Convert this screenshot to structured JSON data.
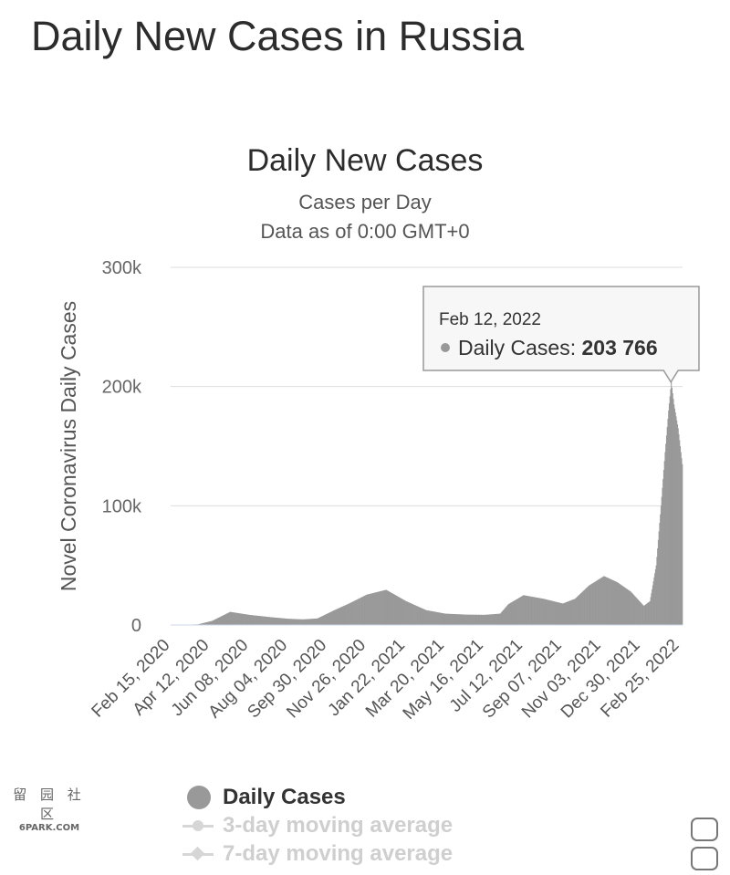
{
  "page": {
    "title": "Daily New Cases in Russia"
  },
  "watermark": {
    "symbols": "留 园 社 区",
    "text": "6PARK.COM"
  },
  "legend": {
    "items": [
      {
        "label": "Daily Cases",
        "state": "visible",
        "marker": "circle"
      },
      {
        "label": "3-day moving average",
        "state": "hidden",
        "marker": "line-circle"
      },
      {
        "label": "7-day moving average",
        "state": "hidden",
        "marker": "line-diamond"
      }
    ]
  },
  "tooltip": {
    "date": "Feb 12, 2022",
    "label": "Daily Cases: ",
    "value": "203 766"
  },
  "colors": {
    "bars": "#999999",
    "grid": "#dddddd",
    "tooltip_border": "#999999",
    "legend_hidden": "#cfcfcf"
  },
  "chart_data": {
    "type": "bar",
    "title": "Daily New Cases",
    "subtitle": "Cases per Day",
    "subtitle2": "Data as of 0:00 GMT+0",
    "ylabel": "Novel Coronavirus Daily Cases",
    "xlabel": "",
    "ylim": [
      0,
      300000
    ],
    "yticks": [
      0,
      100000,
      200000,
      300000
    ],
    "ytick_labels": [
      "0",
      "100k",
      "200k",
      "300k"
    ],
    "grid": true,
    "x_start": "Feb 15, 2020",
    "x_end": "Mar 01, 2022",
    "xtick_labels": [
      "Feb 15, 2020",
      "Apr 12, 2020",
      "Jun 08, 2020",
      "Aug 04, 2020",
      "Sep 30, 2020",
      "Nov 26, 2020",
      "Jan 22, 2021",
      "Mar 20, 2021",
      "May 16, 2021",
      "Jul 12, 2021",
      "Sep 07, 2021",
      "Nov 03, 2021",
      "Dec 30, 2021",
      "Feb 25, 2022"
    ],
    "series": [
      {
        "name": "Daily Cases",
        "keypoints": [
          {
            "date": "Feb 15, 2020",
            "value": 0
          },
          {
            "date": "Mar 25, 2020",
            "value": 500
          },
          {
            "date": "Apr 15, 2020",
            "value": 3500
          },
          {
            "date": "May 11, 2020",
            "value": 11000
          },
          {
            "date": "Jun 08, 2020",
            "value": 8500
          },
          {
            "date": "Jul 10, 2020",
            "value": 6500
          },
          {
            "date": "Aug 04, 2020",
            "value": 5200
          },
          {
            "date": "Aug 25, 2020",
            "value": 4700
          },
          {
            "date": "Sep 15, 2020",
            "value": 5500
          },
          {
            "date": "Oct 10, 2020",
            "value": 12500
          },
          {
            "date": "Oct 31, 2020",
            "value": 18000
          },
          {
            "date": "Nov 26, 2020",
            "value": 25500
          },
          {
            "date": "Dec 24, 2020",
            "value": 29500
          },
          {
            "date": "Jan 22, 2021",
            "value": 20000
          },
          {
            "date": "Feb 20, 2021",
            "value": 12500
          },
          {
            "date": "Mar 20, 2021",
            "value": 9500
          },
          {
            "date": "Apr 20, 2021",
            "value": 8700
          },
          {
            "date": "May 16, 2021",
            "value": 8500
          },
          {
            "date": "Jun 08, 2021",
            "value": 9500
          },
          {
            "date": "Jun 20, 2021",
            "value": 17500
          },
          {
            "date": "Jul 12, 2021",
            "value": 25000
          },
          {
            "date": "Aug 10, 2021",
            "value": 22000
          },
          {
            "date": "Sep 07, 2021",
            "value": 18000
          },
          {
            "date": "Sep 25, 2021",
            "value": 22000
          },
          {
            "date": "Oct 15, 2021",
            "value": 33000
          },
          {
            "date": "Nov 06, 2021",
            "value": 41000
          },
          {
            "date": "Nov 25, 2021",
            "value": 36000
          },
          {
            "date": "Dec 15, 2021",
            "value": 28000
          },
          {
            "date": "Jan 03, 2022",
            "value": 16000
          },
          {
            "date": "Jan 12, 2022",
            "value": 20000
          },
          {
            "date": "Jan 21, 2022",
            "value": 50000
          },
          {
            "date": "Jan 28, 2022",
            "value": 100000
          },
          {
            "date": "Feb 03, 2022",
            "value": 145000
          },
          {
            "date": "Feb 08, 2022",
            "value": 180000
          },
          {
            "date": "Feb 12, 2022",
            "value": 203766
          },
          {
            "date": "Feb 16, 2022",
            "value": 185000
          },
          {
            "date": "Feb 22, 2022",
            "value": 165000
          },
          {
            "date": "Feb 28, 2022",
            "value": 135000
          }
        ]
      }
    ],
    "highlight": {
      "date": "Feb 12, 2022",
      "value": 203766
    }
  }
}
